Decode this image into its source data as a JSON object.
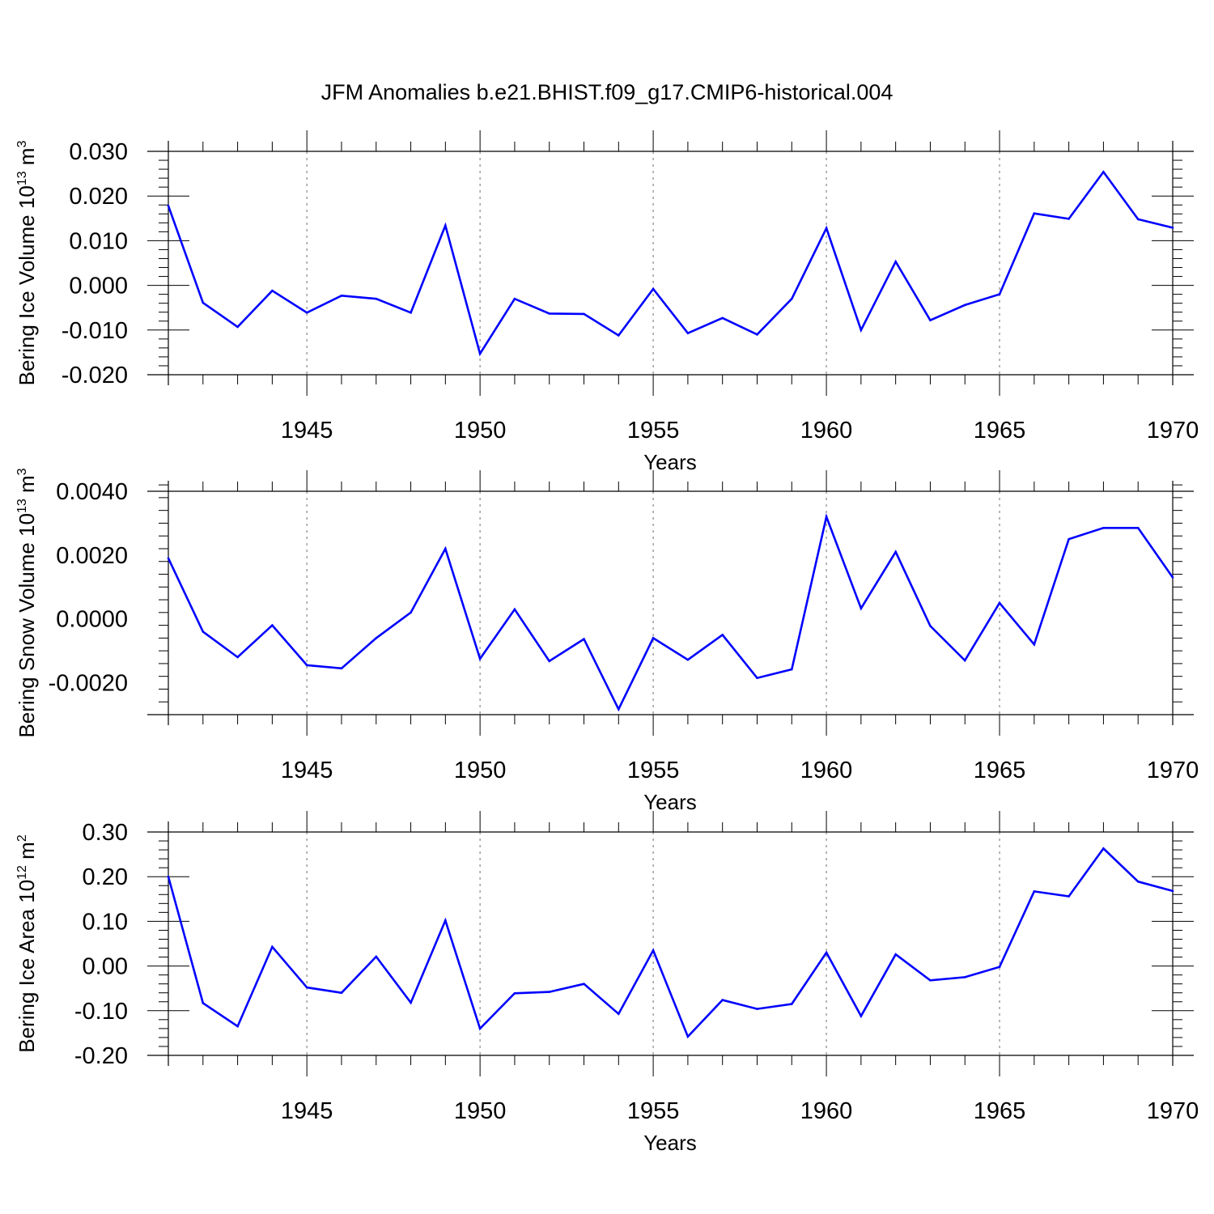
{
  "title": "JFM Anomalies b.e21.BHIST.f09_g17.CMIP6-historical.004",
  "colors": {
    "line": "#0000ff",
    "axis": "#000000",
    "grid": "#888888"
  },
  "chart_data": [
    {
      "type": "line",
      "ylabel_main": "Bering Ice Volume 10",
      "ylabel_exp": "13",
      "ylabel_unit": " m",
      "ylabel_unit_exp": "3",
      "xlabel": "Years",
      "xlim": [
        1941,
        1970
      ],
      "ylim": [
        -0.02,
        0.03
      ],
      "yticks": [
        -0.02,
        -0.01,
        0.0,
        0.01,
        0.02,
        0.03
      ],
      "ytick_labels": [
        "-0.020",
        "-0.010",
        "0.000",
        "0.010",
        "0.020",
        "0.030"
      ],
      "xticks": [
        1945,
        1950,
        1955,
        1960,
        1965,
        1970
      ],
      "xtick_labels": [
        "1945",
        "1950",
        "1955",
        "1960",
        "1965",
        "1970"
      ],
      "grid": "x-dashed",
      "x": [
        1941,
        1942,
        1943,
        1944,
        1945,
        1946,
        1947,
        1948,
        1949,
        1950,
        1951,
        1952,
        1953,
        1954,
        1955,
        1956,
        1957,
        1958,
        1959,
        1960,
        1961,
        1962,
        1963,
        1964,
        1965,
        1966,
        1967,
        1968,
        1969,
        1970
      ],
      "values": [
        0.0178,
        -0.0039,
        -0.0093,
        -0.0012,
        -0.0061,
        -0.0023,
        -0.003,
        -0.0061,
        0.0134,
        -0.0153,
        -0.003,
        -0.0063,
        -0.0064,
        -0.0112,
        -0.0008,
        -0.0107,
        -0.0073,
        -0.011,
        -0.003,
        0.0128,
        -0.01,
        0.0053,
        -0.0078,
        -0.0044,
        -0.002,
        0.0161,
        0.0149,
        0.0254,
        0.0148,
        0.0129
      ]
    },
    {
      "type": "line",
      "ylabel_main": "Bering Snow Volume 10",
      "ylabel_exp": "13",
      "ylabel_unit": " m",
      "ylabel_unit_exp": "3",
      "xlabel": "Years",
      "xlim": [
        1941,
        1970
      ],
      "ylim": [
        -0.003,
        0.004
      ],
      "yticks": [
        -0.002,
        0.0,
        0.002,
        0.004
      ],
      "ytick_labels": [
        "-0.0020",
        "0.0000",
        "0.0020",
        "0.0040"
      ],
      "xticks": [
        1945,
        1950,
        1955,
        1960,
        1965,
        1970
      ],
      "xtick_labels": [
        "1945",
        "1950",
        "1955",
        "1960",
        "1965",
        "1970"
      ],
      "grid": "x-dashed",
      "x": [
        1941,
        1942,
        1943,
        1944,
        1945,
        1946,
        1947,
        1948,
        1949,
        1950,
        1951,
        1952,
        1953,
        1954,
        1955,
        1956,
        1957,
        1958,
        1959,
        1960,
        1961,
        1962,
        1963,
        1964,
        1965,
        1966,
        1967,
        1968,
        1969,
        1970
      ],
      "values": [
        0.0019,
        -0.0004,
        -0.0012,
        -0.0002,
        -0.00145,
        -0.00155,
        -0.0006,
        0.0002,
        0.0022,
        -0.00125,
        0.0003,
        -0.00132,
        -0.00063,
        -0.00283,
        -0.0006,
        -0.00128,
        -0.0005,
        -0.00185,
        -0.00158,
        0.0032,
        0.00033,
        0.0021,
        -0.00022,
        -0.0013,
        0.0005,
        -0.0008,
        0.0025,
        0.00285,
        0.00285,
        0.0013
      ]
    },
    {
      "type": "line",
      "ylabel_main": "Bering Ice Area 10",
      "ylabel_exp": "12",
      "ylabel_unit": " m",
      "ylabel_unit_exp": "2",
      "xlabel": "Years",
      "xlim": [
        1941,
        1970
      ],
      "ylim": [
        -0.2,
        0.3
      ],
      "yticks": [
        -0.2,
        -0.1,
        0.0,
        0.1,
        0.2,
        0.3
      ],
      "ytick_labels": [
        "-0.20",
        "-0.10",
        "0.00",
        "0.10",
        "0.20",
        "0.30"
      ],
      "xticks": [
        1945,
        1950,
        1955,
        1960,
        1965,
        1970
      ],
      "xtick_labels": [
        "1945",
        "1950",
        "1955",
        "1960",
        "1965",
        "1970"
      ],
      "grid": "x-dashed",
      "x": [
        1941,
        1942,
        1943,
        1944,
        1945,
        1946,
        1947,
        1948,
        1949,
        1950,
        1951,
        1952,
        1953,
        1954,
        1955,
        1956,
        1957,
        1958,
        1959,
        1960,
        1961,
        1962,
        1963,
        1964,
        1965,
        1966,
        1967,
        1968,
        1969,
        1970
      ],
      "values": [
        0.2,
        -0.083,
        -0.135,
        0.043,
        -0.048,
        -0.06,
        0.021,
        -0.082,
        0.102,
        -0.14,
        -0.061,
        -0.058,
        -0.04,
        -0.107,
        0.035,
        -0.158,
        -0.076,
        -0.096,
        -0.085,
        0.03,
        -0.112,
        0.026,
        -0.032,
        -0.025,
        -0.002,
        0.167,
        0.156,
        0.263,
        0.189,
        0.168
      ]
    }
  ]
}
